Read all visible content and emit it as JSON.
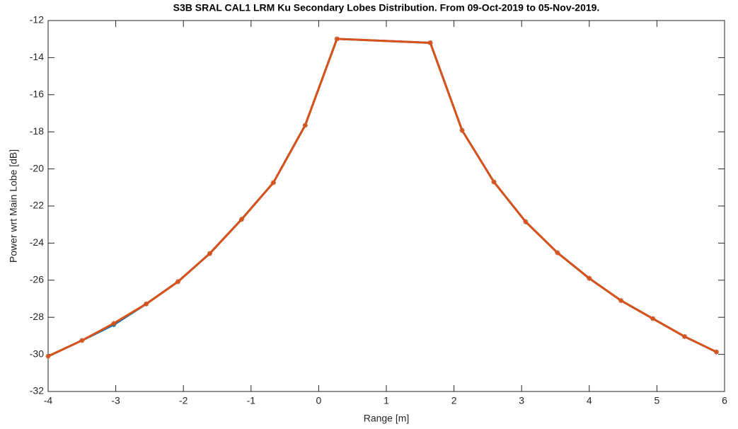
{
  "chart_data": {
    "type": "line",
    "title": "S3B SRAL CAL1 LRM Ku Secondary Lobes Distribution. From 09-Oct-2019 to 05-Nov-2019.",
    "x_label": "Range [m]",
    "y_label": "Power wrt Main Lobe [dB]",
    "x": [
      -4,
      -3.5,
      -3.03,
      -2.55,
      -2.08,
      -1.61,
      -1.14,
      -0.67,
      -0.2,
      0.27,
      1.65,
      2.12,
      2.59,
      3.06,
      3.53,
      4.0,
      4.47,
      4.94,
      5.41,
      5.88
    ],
    "series": [
      {
        "color": "#0072bd",
        "values": [
          -30.1,
          -29.25,
          -28.4,
          -27.28,
          -26.08,
          -24.56,
          -22.72,
          -20.74,
          -17.65,
          -12.99,
          -13.2,
          -17.92,
          -20.7,
          -22.85,
          -24.52,
          -25.9,
          -27.1,
          -28.07,
          -29.04,
          -29.87
        ]
      },
      {
        "color": "#d95319",
        "values": [
          -30.1,
          -29.25,
          -28.33,
          -27.28,
          -26.08,
          -24.56,
          -22.72,
          -20.74,
          -17.65,
          -12.99,
          -13.2,
          -17.92,
          -20.7,
          -22.85,
          -24.52,
          -25.9,
          -27.1,
          -28.07,
          -29.04,
          -29.87
        ]
      }
    ],
    "xlim": [
      -4,
      6
    ],
    "xticks": [
      -4,
      -3,
      -2,
      -1,
      0,
      1,
      2,
      3,
      4,
      5,
      6
    ],
    "ylim": [
      -32,
      -12
    ],
    "yticks": [
      -32,
      -30,
      -28,
      -26,
      -24,
      -22,
      -20,
      -18,
      -16,
      -14,
      -12
    ],
    "grid": false
  }
}
